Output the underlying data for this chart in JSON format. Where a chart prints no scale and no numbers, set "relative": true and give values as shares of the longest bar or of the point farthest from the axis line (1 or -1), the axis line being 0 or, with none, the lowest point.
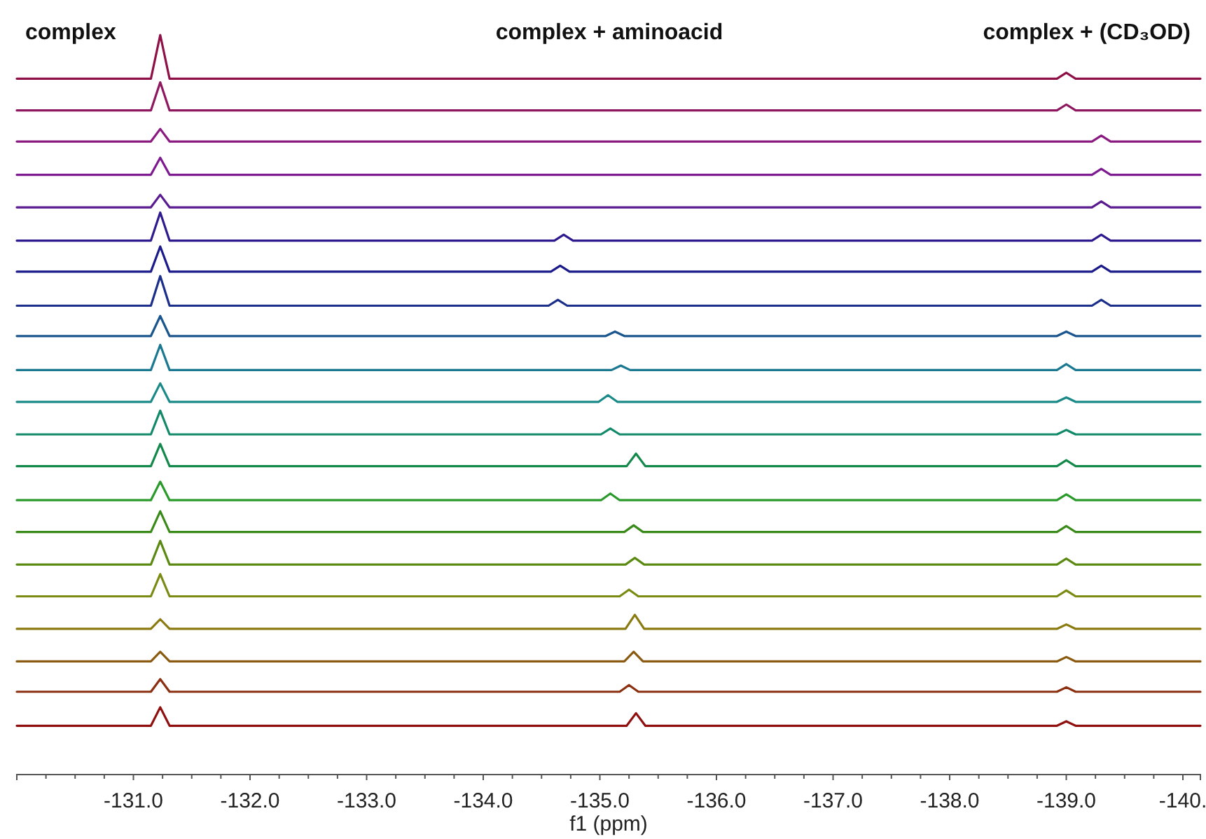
{
  "chart_data": {
    "type": "line",
    "relative": true,
    "xlabel": "f1 (ppm)",
    "annotations": [
      "complex",
      "complex + aminoacid",
      "complex + (CD₃OD)"
    ],
    "xlim": [
      -130.0,
      -140.15
    ],
    "xticks": [
      {
        "value": -131,
        "label": "-131.0"
      },
      {
        "value": -132,
        "label": "-132.0"
      },
      {
        "value": -133,
        "label": "-133.0"
      },
      {
        "value": -134,
        "label": "-134.0"
      },
      {
        "value": -135,
        "label": "-135.0"
      },
      {
        "value": -136,
        "label": "-136.0"
      },
      {
        "value": -137,
        "label": "-137.0"
      },
      {
        "value": -138,
        "label": "-138.0"
      },
      {
        "value": -139,
        "label": "-139.0"
      },
      {
        "value": -140,
        "label": "-140."
      }
    ],
    "series": [
      {
        "color": "#8e1046",
        "x": [
          -130.0,
          -131.15,
          -131.23,
          -131.31,
          -138.92,
          -139.0,
          -139.08,
          -140.15
        ],
        "values": [
          0.941,
          0.941,
          1.0,
          0.941,
          0.941,
          0.949,
          0.941,
          0.941
        ]
      },
      {
        "color": "#8e1860",
        "x": [
          -130.0,
          -131.15,
          -131.23,
          -131.31,
          -138.92,
          -139.0,
          -139.08,
          -140.15
        ],
        "values": [
          0.898,
          0.898,
          0.936,
          0.898,
          0.898,
          0.906,
          0.898,
          0.898
        ]
      },
      {
        "color": "#8a1a80",
        "x": [
          -130.0,
          -131.15,
          -131.23,
          -131.31,
          -139.22,
          -139.3,
          -139.38,
          -140.15
        ],
        "values": [
          0.856,
          0.856,
          0.873,
          0.856,
          0.856,
          0.864,
          0.856,
          0.856
        ]
      },
      {
        "color": "#7d1a90",
        "x": [
          -130.0,
          -131.15,
          -131.23,
          -131.31,
          -139.22,
          -139.3,
          -139.38,
          -140.15
        ],
        "values": [
          0.811,
          0.811,
          0.834,
          0.811,
          0.811,
          0.819,
          0.811,
          0.811
        ]
      },
      {
        "color": "#5a1a90",
        "x": [
          -130.0,
          -131.15,
          -131.23,
          -131.31,
          -139.22,
          -139.3,
          -139.38,
          -140.15
        ],
        "values": [
          0.767,
          0.767,
          0.784,
          0.767,
          0.767,
          0.775,
          0.767,
          0.767
        ]
      },
      {
        "color": "#2e1a8e",
        "x": [
          -130.0,
          -131.15,
          -131.23,
          -131.31,
          -134.61,
          -134.69,
          -134.77,
          -139.22,
          -139.3,
          -139.38,
          -140.15
        ],
        "values": [
          0.722,
          0.722,
          0.76,
          0.722,
          0.722,
          0.73,
          0.722,
          0.722,
          0.73,
          0.722,
          0.722
        ]
      },
      {
        "color": "#1a1a8a",
        "x": [
          -130.0,
          -131.15,
          -131.23,
          -131.31,
          -134.58,
          -134.66,
          -134.74,
          -139.22,
          -139.3,
          -139.38,
          -140.15
        ],
        "values": [
          0.68,
          0.68,
          0.714,
          0.68,
          0.68,
          0.688,
          0.68,
          0.68,
          0.688,
          0.68,
          0.68
        ]
      },
      {
        "color": "#1a2e8a",
        "x": [
          -130.0,
          -131.15,
          -131.23,
          -131.31,
          -134.56,
          -134.64,
          -134.72,
          -139.22,
          -139.3,
          -139.38,
          -140.15
        ],
        "values": [
          0.634,
          0.634,
          0.674,
          0.634,
          0.634,
          0.642,
          0.634,
          0.634,
          0.642,
          0.634,
          0.634
        ]
      },
      {
        "color": "#1a558e",
        "x": [
          -130.0,
          -131.15,
          -131.23,
          -131.31,
          -135.05,
          -135.13,
          -135.21,
          -138.92,
          -139.0,
          -139.08,
          -140.15
        ],
        "values": [
          0.593,
          0.593,
          0.62,
          0.593,
          0.593,
          0.599,
          0.593,
          0.593,
          0.599,
          0.593,
          0.593
        ]
      },
      {
        "color": "#1a7890",
        "x": [
          -130.0,
          -131.15,
          -131.23,
          -131.31,
          -135.1,
          -135.18,
          -135.26,
          -138.92,
          -139.0,
          -139.08,
          -140.15
        ],
        "values": [
          0.547,
          0.547,
          0.581,
          0.547,
          0.547,
          0.553,
          0.547,
          0.547,
          0.555,
          0.547,
          0.547
        ]
      },
      {
        "color": "#1a8a88",
        "x": [
          -130.0,
          -131.15,
          -131.23,
          -131.31,
          -134.99,
          -135.07,
          -135.15,
          -138.92,
          -139.0,
          -139.08,
          -140.15
        ],
        "values": [
          0.504,
          0.504,
          0.529,
          0.504,
          0.504,
          0.513,
          0.504,
          0.504,
          0.51,
          0.504,
          0.504
        ]
      },
      {
        "color": "#128a6a",
        "x": [
          -130.0,
          -131.15,
          -131.23,
          -131.31,
          -135.01,
          -135.09,
          -135.17,
          -138.92,
          -139.0,
          -139.08,
          -140.15
        ],
        "values": [
          0.46,
          0.46,
          0.492,
          0.46,
          0.46,
          0.468,
          0.46,
          0.46,
          0.466,
          0.46,
          0.46
        ]
      },
      {
        "color": "#12884a",
        "x": [
          -130.0,
          -131.15,
          -131.23,
          -131.31,
          -135.23,
          -135.31,
          -135.39,
          -138.92,
          -139.0,
          -139.08,
          -140.15
        ],
        "values": [
          0.417,
          0.417,
          0.447,
          0.417,
          0.417,
          0.434,
          0.417,
          0.417,
          0.425,
          0.417,
          0.417
        ]
      },
      {
        "color": "#2a9a2a",
        "x": [
          -130.0,
          -131.15,
          -131.23,
          -131.31,
          -135.01,
          -135.09,
          -135.17,
          -138.92,
          -139.0,
          -139.08,
          -140.15
        ],
        "values": [
          0.371,
          0.371,
          0.396,
          0.371,
          0.371,
          0.38,
          0.371,
          0.371,
          0.379,
          0.371,
          0.371
        ]
      },
      {
        "color": "#3a8a1a",
        "x": [
          -130.0,
          -131.15,
          -131.23,
          -131.31,
          -135.21,
          -135.29,
          -135.37,
          -138.92,
          -139.0,
          -139.08,
          -140.15
        ],
        "values": [
          0.328,
          0.328,
          0.356,
          0.328,
          0.328,
          0.337,
          0.328,
          0.328,
          0.336,
          0.328,
          0.328
        ]
      },
      {
        "color": "#5a8a12",
        "x": [
          -130.0,
          -131.15,
          -131.23,
          -131.31,
          -135.22,
          -135.3,
          -135.38,
          -138.92,
          -139.0,
          -139.08,
          -140.15
        ],
        "values": [
          0.284,
          0.284,
          0.316,
          0.284,
          0.284,
          0.293,
          0.284,
          0.284,
          0.292,
          0.284,
          0.284
        ]
      },
      {
        "color": "#7a8a12",
        "x": [
          -130.0,
          -131.15,
          -131.23,
          -131.31,
          -135.17,
          -135.25,
          -135.33,
          -138.92,
          -139.0,
          -139.08,
          -140.15
        ],
        "values": [
          0.241,
          0.241,
          0.271,
          0.241,
          0.241,
          0.25,
          0.241,
          0.241,
          0.249,
          0.241,
          0.241
        ]
      },
      {
        "color": "#8a7a10",
        "x": [
          -130.0,
          -131.15,
          -131.23,
          -131.31,
          -135.22,
          -135.3,
          -135.38,
          -138.92,
          -139.0,
          -139.08,
          -140.15
        ],
        "values": [
          0.197,
          0.197,
          0.21,
          0.197,
          0.197,
          0.216,
          0.197,
          0.197,
          0.203,
          0.197,
          0.197
        ]
      },
      {
        "color": "#8a5a10",
        "x": [
          -130.0,
          -131.15,
          -131.23,
          -131.31,
          -135.21,
          -135.29,
          -135.37,
          -138.92,
          -139.0,
          -139.08,
          -140.15
        ],
        "values": [
          0.153,
          0.153,
          0.166,
          0.153,
          0.153,
          0.166,
          0.153,
          0.153,
          0.159,
          0.153,
          0.153
        ]
      },
      {
        "color": "#8a3010",
        "x": [
          -130.0,
          -131.15,
          -131.23,
          -131.31,
          -135.17,
          -135.25,
          -135.33,
          -138.92,
          -139.0,
          -139.08,
          -140.15
        ],
        "values": [
          0.112,
          0.112,
          0.129,
          0.112,
          0.112,
          0.121,
          0.112,
          0.112,
          0.118,
          0.112,
          0.112
        ]
      },
      {
        "color": "#901010",
        "x": [
          -130.0,
          -131.15,
          -131.23,
          -131.31,
          -135.23,
          -135.31,
          -135.39,
          -138.92,
          -139.0,
          -139.08,
          -140.15
        ],
        "values": [
          0.066,
          0.066,
          0.091,
          0.066,
          0.066,
          0.083,
          0.066,
          0.066,
          0.072,
          0.066,
          0.066
        ]
      }
    ]
  }
}
